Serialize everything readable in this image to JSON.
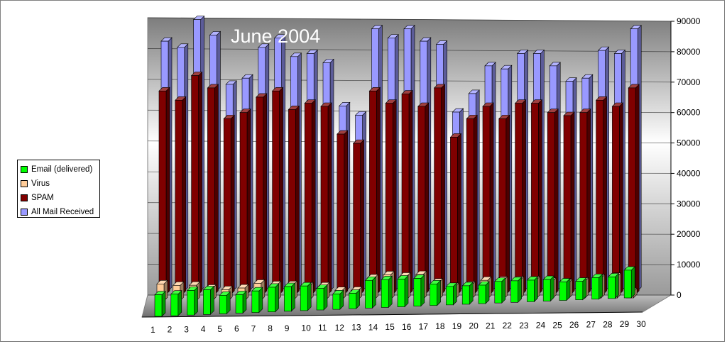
{
  "chart_data": {
    "type": "bar",
    "title": "June 2004",
    "categories": [
      "1",
      "2",
      "3",
      "4",
      "5",
      "6",
      "7",
      "8",
      "9",
      "10",
      "11",
      "12",
      "13",
      "14",
      "15",
      "16",
      "17",
      "18",
      "19",
      "20",
      "21",
      "22",
      "23",
      "24",
      "25",
      "26",
      "27",
      "28",
      "29",
      "30"
    ],
    "ylim": [
      0,
      90000
    ],
    "yticks": [
      "0",
      "10000",
      "20000",
      "30000",
      "40000",
      "50000",
      "60000",
      "70000",
      "80000",
      "90000"
    ],
    "grid": true,
    "legend_position": "left",
    "series": [
      {
        "name": "Email (delivered)",
        "color": "#00ff00",
        "values": [
          7000,
          7000,
          8000,
          8000,
          6000,
          6000,
          7000,
          8000,
          8000,
          8000,
          7000,
          5000,
          5000,
          9000,
          9000,
          9000,
          9000,
          7000,
          6000,
          6000,
          6000,
          7000,
          7000,
          7000,
          7000,
          6000,
          6000,
          7000,
          7000,
          9000
        ]
      },
      {
        "name": "Virus",
        "color": "#ffcc99",
        "values": [
          5500,
          5000,
          5000,
          4000,
          3500,
          4000,
          5500,
          5000,
          5000,
          4500,
          4500,
          3000,
          3000,
          7000,
          8000,
          7500,
          8000,
          5500,
          4000,
          4500,
          6000,
          6000,
          6000,
          6000,
          5500,
          5000,
          5500,
          6500,
          7000,
          2000
        ]
      },
      {
        "name": "SPAM",
        "color": "#800000",
        "values": [
          66000,
          63000,
          71000,
          67000,
          57000,
          59000,
          64000,
          66000,
          60000,
          62000,
          61000,
          52000,
          49000,
          66000,
          62000,
          65000,
          61000,
          67000,
          51000,
          57000,
          61000,
          57000,
          62000,
          62000,
          59000,
          58000,
          59000,
          63000,
          61000,
          67000
        ]
      },
      {
        "name": "All Mail Received",
        "color": "#9999ff",
        "values": [
          81000,
          79000,
          88000,
          83000,
          67000,
          69000,
          79000,
          82000,
          76000,
          77000,
          74000,
          60000,
          57000,
          85000,
          82000,
          85000,
          81000,
          80000,
          58000,
          64000,
          73000,
          72000,
          77000,
          77000,
          73000,
          68000,
          69000,
          78000,
          77000,
          85000
        ]
      }
    ]
  }
}
